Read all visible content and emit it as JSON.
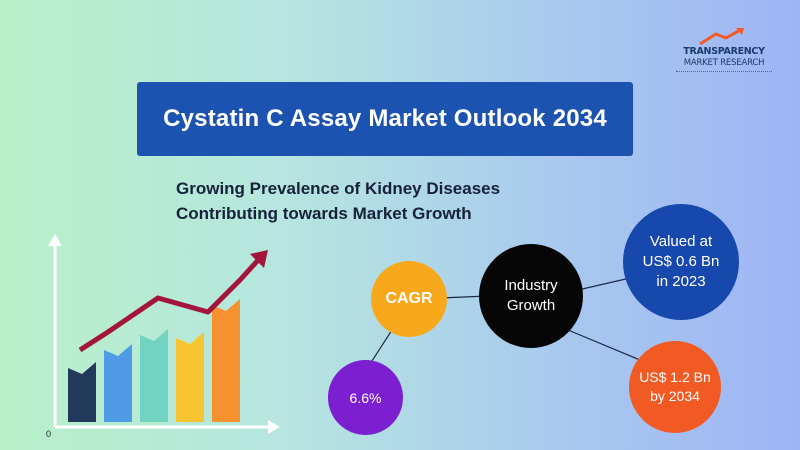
{
  "logo": {
    "line1": "TRANSPARENCY",
    "line2": "MARKET RESEARCH"
  },
  "title": "Cystatin C Assay Market Outlook 2034",
  "subtitle": {
    "line1": "Growing Prevalence of Kidney Diseases",
    "line2": "Contributing towards Market Growth"
  },
  "illustration": {
    "axis_origin_label": "0",
    "bar_levels": [
      0.36,
      0.48,
      0.58,
      0.56,
      0.78
    ],
    "colors": {
      "bars": [
        "#213a5c",
        "#4f9be6",
        "#72d3c0",
        "#f7c531",
        "#f7902f"
      ],
      "trend": "#a3153a"
    }
  },
  "diagram": {
    "cagr": "CAGR",
    "industry_growth": [
      "Industry",
      "Growth"
    ],
    "valued": [
      "Valued at",
      "US$ 0.6 Bn",
      "in 2023"
    ],
    "cagr_value": "6.6%",
    "forecast": [
      "US$ 1.2 Bn",
      "by 2034"
    ]
  },
  "colors": {
    "title_bg": "#1c52b0",
    "cagr": "#f7a81b",
    "industry": "#050505",
    "valued": "#1748ad",
    "cagr_value": "#7b1fd0",
    "forecast": "#f25a24"
  }
}
